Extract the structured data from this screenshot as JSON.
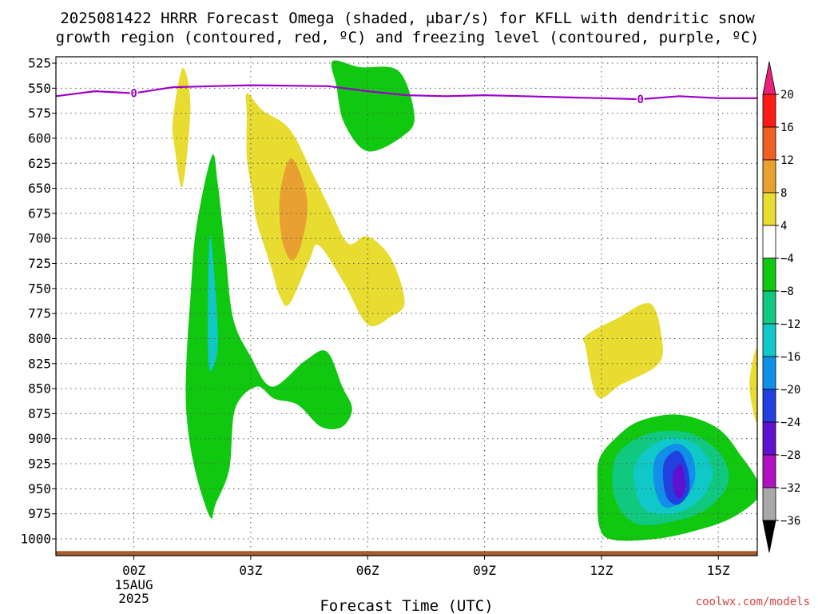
{
  "chart_data": {
    "type": "heatmap",
    "title_lines": [
      "2025081422 HRRR Forecast Omega (shaded, μbar/s) for KFLL with dendritic snow",
      "growth region (contoured, red, ºC) and freezing level (contoured, purple, ºC)"
    ],
    "xlabel": "Forecast Time (UTC)",
    "credit": "coolwx.com/models",
    "x_ticks": [
      {
        "hour": 0,
        "label": "00Z",
        "sub": [
          "15AUG",
          "2025"
        ]
      },
      {
        "hour": 3,
        "label": "03Z",
        "sub": []
      },
      {
        "hour": 6,
        "label": "06Z",
        "sub": []
      },
      {
        "hour": 9,
        "label": "09Z",
        "sub": []
      },
      {
        "hour": 12,
        "label": "12Z",
        "sub": []
      },
      {
        "hour": 15,
        "label": "15Z",
        "sub": []
      }
    ],
    "x_range_hours": [
      -2,
      16
    ],
    "y_range_hpa": [
      510,
      1025
    ],
    "y_ticks": [
      525,
      550,
      575,
      600,
      625,
      650,
      675,
      700,
      725,
      750,
      775,
      800,
      825,
      850,
      875,
      900,
      925,
      950,
      975,
      1000
    ],
    "freezing_level": {
      "label": "0",
      "color": "#9c00c8",
      "points": [
        [
          -2,
          558
        ],
        [
          -1,
          553
        ],
        [
          0,
          555
        ],
        [
          1,
          549
        ],
        [
          2,
          548
        ],
        [
          3,
          547
        ],
        [
          5,
          548
        ],
        [
          6,
          553
        ],
        [
          7,
          557
        ],
        [
          8,
          558
        ],
        [
          9,
          557
        ],
        [
          10,
          558
        ],
        [
          11,
          559
        ],
        [
          12,
          560
        ],
        [
          13,
          561
        ],
        [
          14,
          558
        ],
        [
          15,
          560
        ],
        [
          16,
          560
        ]
      ],
      "label_hours": [
        0,
        13
      ]
    },
    "colorbar": {
      "labels": [
        "20",
        "16",
        "12",
        "8",
        "4",
        "−4",
        "−8",
        "−12",
        "−16",
        "−20",
        "−24",
        "−28",
        "−32",
        "−36"
      ],
      "colors": [
        "#ff1a1a",
        "#f06020",
        "#e8a030",
        "#e8dc30",
        "#ffffff",
        "#10c810",
        "#10c880",
        "#10c8c8",
        "#1090e8",
        "#2040e0",
        "#6010d0",
        "#b010c0",
        "#a8a8a8"
      ],
      "top_arrow_color": "#e8207a",
      "bottom_arrow_color": "#000000"
    },
    "regions": [
      {
        "color": "#e8dc30",
        "points": [
          [
            1.0,
            582
          ],
          [
            1.25,
            530
          ],
          [
            1.45,
            568
          ],
          [
            1.25,
            648
          ],
          [
            1.05,
            610
          ]
        ]
      },
      {
        "color": "#10c810",
        "points": [
          [
            5.1,
            523
          ],
          [
            5.8,
            529
          ],
          [
            6.8,
            533
          ],
          [
            7.2,
            578
          ],
          [
            6.9,
            598
          ],
          [
            6.0,
            613
          ],
          [
            5.4,
            585
          ],
          [
            5.2,
            548
          ]
        ]
      },
      {
        "color": "#e8dc30",
        "points": [
          [
            2.9,
            555
          ],
          [
            3.3,
            572
          ],
          [
            4.0,
            591
          ],
          [
            4.6,
            636
          ],
          [
            5.05,
            672
          ],
          [
            5.5,
            705
          ],
          [
            6.0,
            698
          ],
          [
            6.6,
            720
          ],
          [
            6.95,
            763
          ],
          [
            6.6,
            778
          ],
          [
            6.0,
            786
          ],
          [
            5.4,
            745
          ],
          [
            4.75,
            707
          ],
          [
            4.5,
            722
          ],
          [
            4.0,
            765
          ],
          [
            3.75,
            758
          ],
          [
            3.5,
            726
          ],
          [
            3.15,
            683
          ],
          [
            3.05,
            655
          ],
          [
            2.9,
            620
          ],
          [
            2.9,
            578
          ]
        ]
      },
      {
        "color": "#e8a030",
        "points": [
          [
            3.75,
            656
          ],
          [
            4.05,
            620
          ],
          [
            4.45,
            662
          ],
          [
            4.3,
            705
          ],
          [
            4.05,
            722
          ],
          [
            3.8,
            700
          ]
        ]
      },
      {
        "color": "#10c810",
        "points": [
          [
            2.0,
            618
          ],
          [
            2.15,
            644
          ],
          [
            2.35,
            714
          ],
          [
            2.55,
            780
          ],
          [
            3.0,
            818
          ],
          [
            3.55,
            848
          ],
          [
            4.4,
            822
          ],
          [
            4.95,
            813
          ],
          [
            5.35,
            848
          ],
          [
            5.6,
            870
          ],
          [
            5.35,
            888
          ],
          [
            4.8,
            888
          ],
          [
            4.2,
            866
          ],
          [
            3.6,
            860
          ],
          [
            3.15,
            848
          ],
          [
            2.6,
            870
          ],
          [
            2.45,
            930
          ],
          [
            2.1,
            965
          ],
          [
            1.95,
            978
          ],
          [
            1.55,
            928
          ],
          [
            1.35,
            875
          ],
          [
            1.35,
            823
          ],
          [
            1.45,
            760
          ],
          [
            1.6,
            690
          ]
        ]
      },
      {
        "color": "#10c8c8",
        "points": [
          [
            1.95,
            697
          ],
          [
            2.1,
            755
          ],
          [
            2.15,
            810
          ],
          [
            1.95,
            832
          ],
          [
            1.9,
            790
          ]
        ]
      },
      {
        "color": "#e8dc30",
        "points": [
          [
            11.6,
            797
          ],
          [
            12.4,
            780
          ],
          [
            13.25,
            765
          ],
          [
            13.55,
            800
          ],
          [
            13.45,
            826
          ],
          [
            12.5,
            846
          ],
          [
            11.9,
            858
          ],
          [
            11.6,
            810
          ]
        ]
      },
      {
        "color": "#e8dc30",
        "points": [
          [
            15.8,
            846
          ],
          [
            16.0,
            810
          ],
          [
            16.0,
            884
          ]
        ]
      },
      {
        "color": "#10c810",
        "points": [
          [
            11.95,
            920
          ],
          [
            12.4,
            898
          ],
          [
            13.0,
            882
          ],
          [
            14.0,
            876
          ],
          [
            15.0,
            890
          ],
          [
            15.6,
            918
          ],
          [
            16.0,
            942
          ],
          [
            16.0,
            960
          ],
          [
            15.3,
            980
          ],
          [
            14.4,
            992
          ],
          [
            13.4,
            1000
          ],
          [
            12.3,
            1001
          ],
          [
            11.95,
            988
          ],
          [
            11.9,
            950
          ]
        ]
      },
      {
        "color": "#10c880",
        "points": [
          [
            12.35,
            920
          ],
          [
            13.0,
            898
          ],
          [
            13.8,
            892
          ],
          [
            14.5,
            898
          ],
          [
            15.1,
            918
          ],
          [
            15.25,
            945
          ],
          [
            14.7,
            970
          ],
          [
            13.9,
            982
          ],
          [
            12.9,
            985
          ],
          [
            12.35,
            960
          ]
        ]
      },
      {
        "color": "#10c8c8",
        "points": [
          [
            12.9,
            922
          ],
          [
            13.45,
            903
          ],
          [
            14.05,
            900
          ],
          [
            14.55,
            910
          ],
          [
            14.85,
            935
          ],
          [
            14.5,
            962
          ],
          [
            13.8,
            975
          ],
          [
            13.1,
            970
          ],
          [
            12.85,
            945
          ]
        ]
      },
      {
        "color": "#1090e8",
        "points": [
          [
            13.4,
            918
          ],
          [
            13.9,
            905
          ],
          [
            14.3,
            915
          ],
          [
            14.4,
            940
          ],
          [
            14.1,
            962
          ],
          [
            13.6,
            968
          ],
          [
            13.35,
            945
          ]
        ]
      },
      {
        "color": "#2040e0",
        "points": [
          [
            13.6,
            925
          ],
          [
            13.95,
            912
          ],
          [
            14.2,
            928
          ],
          [
            14.25,
            952
          ],
          [
            13.95,
            966
          ],
          [
            13.65,
            956
          ]
        ]
      },
      {
        "color": "#6010d0",
        "points": [
          [
            13.85,
            934
          ],
          [
            14.05,
            926
          ],
          [
            14.15,
            948
          ],
          [
            14.0,
            960
          ],
          [
            13.85,
            950
          ]
        ]
      }
    ],
    "ground": {
      "color": "#a85c2c",
      "pressure_hpa": 1013
    }
  }
}
